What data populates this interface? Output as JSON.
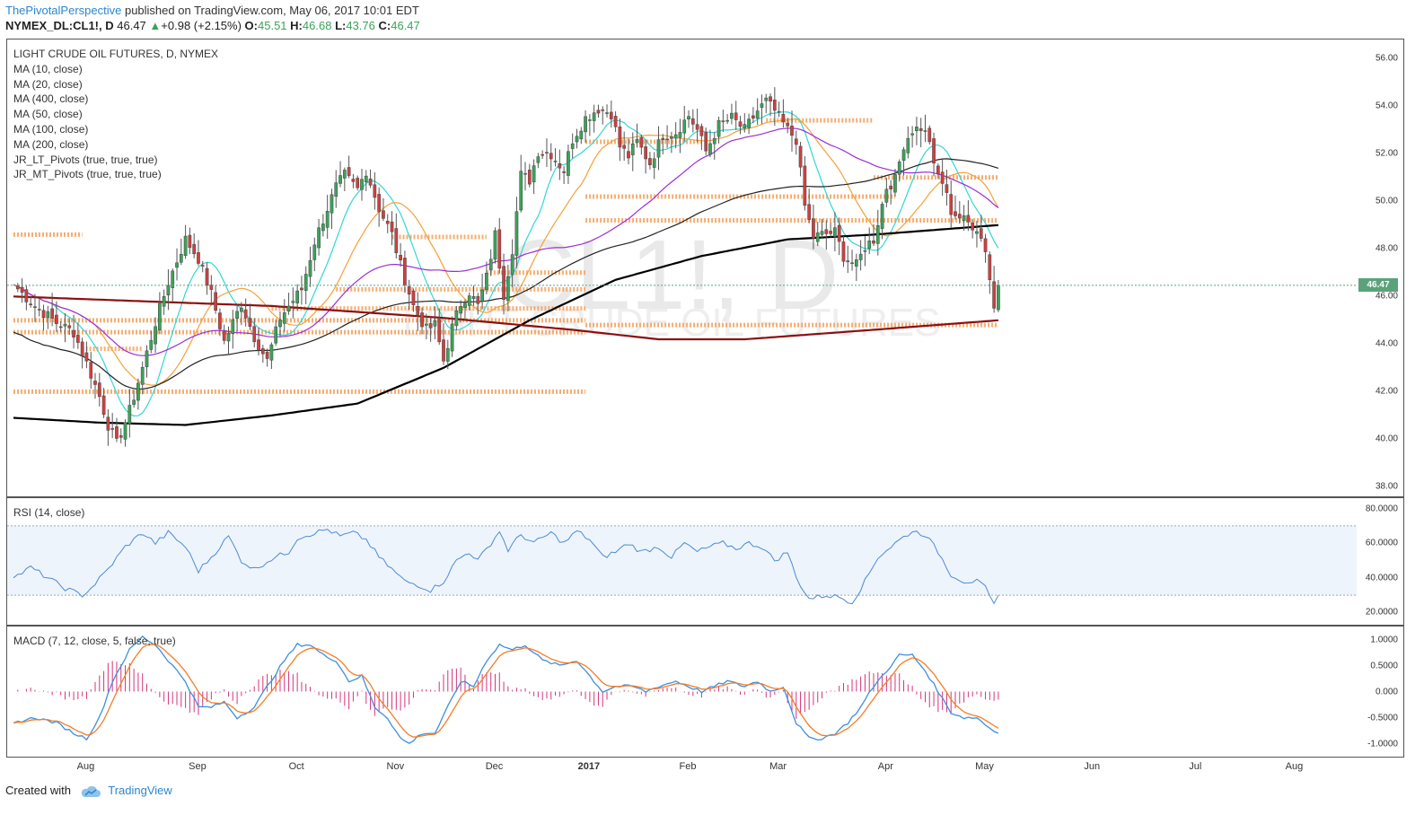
{
  "header": {
    "author": "ThePivotalPerspective",
    "published": "published on TradingView.com, May 06, 2017 10:01 EDT",
    "symbol": "NYMEX_DL:CL1!, D",
    "last": "46.47",
    "change": "+0.98 (+2.15%)",
    "o_label": "O:",
    "o_value": "45.51",
    "h_label": "H:",
    "h_value": "46.68",
    "l_label": "L:",
    "l_value": "43.76",
    "c_label": "C:",
    "c_value": "46.47"
  },
  "legend": {
    "title": "LIGHT CRUDE OIL FUTURES, D, NYMEX",
    "studies": [
      "MA (10, close)",
      "MA (20, close)",
      "MA (400, close)",
      "MA (50, close)",
      "MA (100, close)",
      "MA (200, close)",
      "JR_LT_Pivots (true, true, true)",
      "JR_MT_Pivots (true, true, true)"
    ]
  },
  "watermark": {
    "symbol": "CL1!, D",
    "name": "LIGHT CRUDE OIL FUTURES"
  },
  "price_tag": "46.47",
  "rsi_panel": {
    "title": "RSI (14, close)",
    "ticks": [
      "80.0000",
      "60.0000",
      "40.0000",
      "20.0000"
    ]
  },
  "macd_panel": {
    "title": "MACD (7, 12, close, 5, false, true)",
    "ticks": [
      "1.0000",
      "0.5000",
      "0.000",
      "-0.5000",
      "-1.0000"
    ]
  },
  "footer": {
    "created_with": "Created with",
    "brand": "TradingView"
  },
  "colors": {
    "up": "#3aa35a",
    "down": "#d13f3f",
    "ma10": "#33d6d6",
    "ma20": "#f5a137",
    "ma50": "#9b2dd6",
    "ma100": "#222222",
    "ma200": "#000000",
    "ma400": "#8b1010",
    "pivot": "#f5a05a",
    "rsi": "#4a8bd6",
    "macd": "#3d8fe0",
    "signal": "#f57c28",
    "hist": "#d6337a"
  },
  "chart_data": [
    {
      "type": "candlestick",
      "title": "LIGHT CRUDE OIL FUTURES, D, NYMEX",
      "ylim": [
        37.6,
        56.8
      ],
      "yticks": [
        "56.00",
        "54.00",
        "52.00",
        "50.00",
        "48.00",
        "46.00",
        "44.00",
        "42.00",
        "40.00",
        "38.00"
      ],
      "xticks": [
        "Aug",
        "Sep",
        "Oct",
        "Nov",
        "Dec",
        "2017",
        "Feb",
        "Mar",
        "Apr",
        "May",
        "Jun",
        "Jul",
        "Aug"
      ],
      "close_anchors": [
        [
          0,
          46.5
        ],
        [
          5,
          45.6
        ],
        [
          10,
          44.9
        ],
        [
          14,
          44.5
        ],
        [
          17,
          43.2
        ],
        [
          20,
          41.8
        ],
        [
          22,
          40.6
        ],
        [
          24,
          39.8
        ],
        [
          27,
          41.2
        ],
        [
          30,
          43.0
        ],
        [
          33,
          44.9
        ],
        [
          36,
          46.6
        ],
        [
          40,
          48.4
        ],
        [
          43,
          47.6
        ],
        [
          46,
          46.1
        ],
        [
          49,
          44.1
        ],
        [
          53,
          45.7
        ],
        [
          56,
          44.3
        ],
        [
          59,
          43.3
        ],
        [
          62,
          45.1
        ],
        [
          64,
          45.6
        ],
        [
          67,
          46.3
        ],
        [
          70,
          48.3
        ],
        [
          73,
          49.7
        ],
        [
          75,
          50.6
        ],
        [
          77,
          51.1
        ],
        [
          80,
          50.5
        ],
        [
          82,
          51.3
        ],
        [
          85,
          49.7
        ],
        [
          88,
          48.6
        ],
        [
          90,
          47.3
        ],
        [
          93,
          45.6
        ],
        [
          96,
          44.6
        ],
        [
          98,
          44.8
        ],
        [
          100,
          43.3
        ],
        [
          102,
          44.7
        ],
        [
          104,
          45.7
        ],
        [
          106,
          46.2
        ],
        [
          108,
          45.6
        ],
        [
          110,
          46.8
        ],
        [
          112,
          48.6
        ],
        [
          114,
          46.1
        ],
        [
          116,
          48.0
        ],
        [
          118,
          51.1
        ],
        [
          120,
          50.9
        ],
        [
          122,
          52.1
        ],
        [
          125,
          52.0
        ],
        [
          128,
          51.3
        ],
        [
          130,
          52.6
        ],
        [
          133,
          53.5
        ],
        [
          136,
          53.9
        ],
        [
          139,
          53.7
        ],
        [
          141,
          52.3
        ],
        [
          143,
          51.9
        ],
        [
          145,
          52.5
        ],
        [
          148,
          51.6
        ],
        [
          151,
          52.8
        ],
        [
          154,
          52.9
        ],
        [
          157,
          53.6
        ],
        [
          159,
          53.0
        ],
        [
          161,
          52.1
        ],
        [
          164,
          53.2
        ],
        [
          167,
          53.5
        ],
        [
          170,
          53.0
        ],
        [
          173,
          53.8
        ],
        [
          175,
          54.2
        ],
        [
          177,
          53.8
        ],
        [
          180,
          53.0
        ],
        [
          182,
          52.6
        ],
        [
          184,
          49.8
        ],
        [
          186,
          48.5
        ],
        [
          188,
          48.6
        ],
        [
          191,
          48.7
        ],
        [
          193,
          47.7
        ],
        [
          196,
          47.3
        ],
        [
          198,
          48.1
        ],
        [
          200,
          48.4
        ],
        [
          203,
          50.6
        ],
        [
          205,
          50.9
        ],
        [
          207,
          52.4
        ],
        [
          209,
          53.0
        ],
        [
          211,
          53.1
        ],
        [
          213,
          52.6
        ],
        [
          214,
          51.4
        ],
        [
          216,
          50.8
        ],
        [
          218,
          49.6
        ],
        [
          221,
          49.2
        ],
        [
          224,
          48.9
        ],
        [
          226,
          48.0
        ],
        [
          228,
          45.5
        ],
        [
          229,
          46.47
        ]
      ],
      "last_close": 46.47,
      "moving_averages": [
        {
          "name": "MA (10, close)",
          "period": 10
        },
        {
          "name": "MA (20, close)",
          "period": 20
        },
        {
          "name": "MA (50, close)",
          "period": 50
        },
        {
          "name": "MA (100, close)",
          "period": 100
        },
        {
          "name": "MA (200, close)",
          "curve": [
            [
              0,
              40.9
            ],
            [
              20,
              40.7
            ],
            [
              40,
              40.6
            ],
            [
              60,
              41.0
            ],
            [
              80,
              41.5
            ],
            [
              100,
              43.0
            ],
            [
              120,
              45.0
            ],
            [
              140,
              46.7
            ],
            [
              160,
              47.7
            ],
            [
              180,
              48.4
            ],
            [
              200,
              48.6
            ],
            [
              229,
              49.0
            ]
          ]
        },
        {
          "name": "MA (400, close)",
          "curve": [
            [
              0,
              46.0
            ],
            [
              30,
              45.8
            ],
            [
              60,
              45.6
            ],
            [
              100,
              45.1
            ],
            [
              130,
              44.6
            ],
            [
              150,
              44.2
            ],
            [
              170,
              44.2
            ],
            [
              200,
              44.6
            ],
            [
              229,
              45.0
            ]
          ]
        }
      ],
      "pivot_levels": [
        {
          "level": 42.0,
          "from": 0,
          "to": 133
        },
        {
          "level": 44.5,
          "from": 0,
          "to": 133
        },
        {
          "level": 45.0,
          "from": 0,
          "to": 133
        },
        {
          "level": 45.5,
          "from": 60,
          "to": 133
        },
        {
          "level": 46.3,
          "from": 75,
          "to": 133
        },
        {
          "level": 48.6,
          "from": 0,
          "to": 16
        },
        {
          "level": 48.5,
          "from": 88,
          "to": 110
        },
        {
          "level": 47.0,
          "from": 110,
          "to": 133
        },
        {
          "level": 43.8,
          "from": 16,
          "to": 30
        },
        {
          "level": 44.8,
          "from": 133,
          "to": 229
        },
        {
          "level": 49.2,
          "from": 133,
          "to": 229
        },
        {
          "level": 50.2,
          "from": 133,
          "to": 205
        },
        {
          "level": 51.0,
          "from": 200,
          "to": 229
        },
        {
          "level": 52.5,
          "from": 133,
          "to": 160
        },
        {
          "level": 53.4,
          "from": 175,
          "to": 200
        }
      ]
    },
    {
      "type": "line",
      "title": "RSI (14, close)",
      "ylim": [
        13,
        86
      ],
      "band": [
        30,
        70
      ],
      "values_anchors": [
        [
          0,
          40
        ],
        [
          4,
          46
        ],
        [
          8,
          40
        ],
        [
          12,
          34
        ],
        [
          16,
          30
        ],
        [
          18,
          34
        ],
        [
          22,
          45
        ],
        [
          26,
          58
        ],
        [
          30,
          66
        ],
        [
          33,
          60
        ],
        [
          36,
          66
        ],
        [
          40,
          58
        ],
        [
          43,
          44
        ],
        [
          46,
          52
        ],
        [
          50,
          64
        ],
        [
          53,
          50
        ],
        [
          56,
          45
        ],
        [
          60,
          51
        ],
        [
          64,
          55
        ],
        [
          66,
          63
        ],
        [
          70,
          66
        ],
        [
          73,
          68
        ],
        [
          76,
          64
        ],
        [
          79,
          66
        ],
        [
          82,
          62
        ],
        [
          85,
          52
        ],
        [
          88,
          45
        ],
        [
          91,
          38
        ],
        [
          94,
          36
        ],
        [
          97,
          33
        ],
        [
          100,
          38
        ],
        [
          103,
          50
        ],
        [
          106,
          55
        ],
        [
          108,
          50
        ],
        [
          111,
          60
        ],
        [
          113,
          67
        ],
        [
          115,
          56
        ],
        [
          118,
          65
        ],
        [
          121,
          60
        ],
        [
          125,
          66
        ],
        [
          128,
          60
        ],
        [
          131,
          67
        ],
        [
          134,
          62
        ],
        [
          137,
          52
        ],
        [
          140,
          55
        ],
        [
          143,
          60
        ],
        [
          146,
          55
        ],
        [
          150,
          58
        ],
        [
          153,
          52
        ],
        [
          156,
          60
        ],
        [
          159,
          55
        ],
        [
          162,
          58
        ],
        [
          165,
          60
        ],
        [
          168,
          57
        ],
        [
          171,
          60
        ],
        [
          174,
          58
        ],
        [
          177,
          50
        ],
        [
          180,
          55
        ],
        [
          182,
          40
        ],
        [
          185,
          28
        ],
        [
          189,
          30
        ],
        [
          192,
          29
        ],
        [
          195,
          26
        ],
        [
          198,
          38
        ],
        [
          201,
          52
        ],
        [
          205,
          60
        ],
        [
          209,
          67
        ],
        [
          212,
          65
        ],
        [
          215,
          55
        ],
        [
          218,
          42
        ],
        [
          221,
          38
        ],
        [
          224,
          38
        ],
        [
          226,
          34
        ],
        [
          228,
          24
        ],
        [
          229,
          30
        ]
      ]
    },
    {
      "type": "line",
      "title": "MACD (7, 12, close, 5, false, true)",
      "ylim": [
        -1.25,
        1.25
      ],
      "macd_anchors": [
        [
          0,
          -0.6
        ],
        [
          5,
          -0.5
        ],
        [
          10,
          -0.6
        ],
        [
          14,
          -0.8
        ],
        [
          17,
          -0.9
        ],
        [
          20,
          -0.5
        ],
        [
          23,
          0.2
        ],
        [
          27,
          0.8
        ],
        [
          30,
          1.05
        ],
        [
          33,
          0.9
        ],
        [
          36,
          0.6
        ],
        [
          40,
          0.2
        ],
        [
          43,
          -0.3
        ],
        [
          46,
          -0.3
        ],
        [
          49,
          -0.2
        ],
        [
          52,
          -0.5
        ],
        [
          56,
          -0.3
        ],
        [
          59,
          0.1
        ],
        [
          63,
          0.6
        ],
        [
          66,
          0.9
        ],
        [
          69,
          0.9
        ],
        [
          72,
          0.7
        ],
        [
          75,
          0.6
        ],
        [
          78,
          0.2
        ],
        [
          81,
          0.3
        ],
        [
          84,
          -0.3
        ],
        [
          87,
          -0.5
        ],
        [
          90,
          -0.9
        ],
        [
          92,
          -1.0
        ],
        [
          95,
          -0.8
        ],
        [
          98,
          -0.8
        ],
        [
          101,
          -0.3
        ],
        [
          104,
          0.2
        ],
        [
          107,
          0.1
        ],
        [
          110,
          0.6
        ],
        [
          113,
          0.9
        ],
        [
          116,
          0.8
        ],
        [
          119,
          0.9
        ],
        [
          123,
          0.6
        ],
        [
          127,
          0.5
        ],
        [
          131,
          0.6
        ],
        [
          134,
          0.3
        ],
        [
          137,
          0.0
        ],
        [
          140,
          0.1
        ],
        [
          144,
          0.1
        ],
        [
          147,
          0.0
        ],
        [
          150,
          0.1
        ],
        [
          154,
          0.2
        ],
        [
          157,
          0.1
        ],
        [
          160,
          0.0
        ],
        [
          163,
          0.1
        ],
        [
          166,
          0.2
        ],
        [
          170,
          0.1
        ],
        [
          173,
          0.2
        ],
        [
          176,
          0.0
        ],
        [
          179,
          0.1
        ],
        [
          182,
          -0.6
        ],
        [
          185,
          -0.9
        ],
        [
          188,
          -0.9
        ],
        [
          191,
          -0.8
        ],
        [
          194,
          -0.6
        ],
        [
          197,
          -0.3
        ],
        [
          200,
          0.1
        ],
        [
          203,
          0.4
        ],
        [
          206,
          0.7
        ],
        [
          209,
          0.7
        ],
        [
          212,
          0.4
        ],
        [
          215,
          0.0
        ],
        [
          218,
          -0.4
        ],
        [
          221,
          -0.5
        ],
        [
          224,
          -0.5
        ],
        [
          227,
          -0.7
        ],
        [
          229,
          -0.8
        ]
      ],
      "signal_smoothing": 5
    }
  ]
}
